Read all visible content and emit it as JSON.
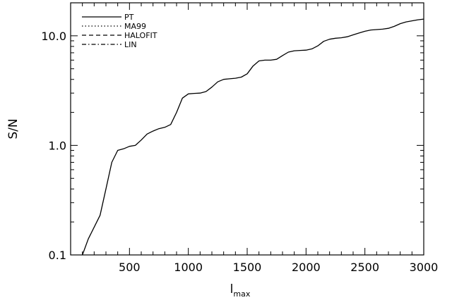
{
  "chart_data": {
    "type": "line",
    "xlabel": "l",
    "xlabel_sub": "max",
    "ylabel": "S/N",
    "xlim": [
      0,
      3000
    ],
    "ylim": [
      0.1,
      20
    ],
    "yscale": "log",
    "grid": false,
    "legend_position": "top-left",
    "x_ticks": [
      500,
      1000,
      1500,
      2000,
      2500,
      3000
    ],
    "x_tick_labels": [
      "500",
      "1000",
      "1500",
      "2000",
      "2500",
      "3000"
    ],
    "y_ticks": [
      0.1,
      1.0,
      10.0
    ],
    "y_tick_labels": [
      "0.1",
      "1.0",
      "10.0"
    ],
    "series": [
      {
        "name": "PT",
        "style": "solid",
        "x": [
          100,
          150,
          250,
          300,
          350,
          400,
          450,
          500,
          550,
          600,
          650,
          700,
          750,
          800,
          850,
          900,
          950,
          1000,
          1050,
          1100,
          1150,
          1200,
          1250,
          1300,
          1350,
          1400,
          1450,
          1500,
          1550,
          1600,
          1650,
          1700,
          1750,
          1800,
          1850,
          1900,
          1950,
          2000,
          2050,
          2100,
          2150,
          2200,
          2250,
          2300,
          2350,
          2400,
          2450,
          2500,
          2550,
          2600,
          2650,
          2700,
          2750,
          2800,
          2850,
          2900,
          2950,
          3000
        ],
        "y": [
          0.1,
          0.14,
          0.23,
          0.4,
          0.7,
          0.9,
          0.93,
          0.98,
          1.0,
          1.12,
          1.27,
          1.35,
          1.42,
          1.46,
          1.55,
          2.0,
          2.7,
          2.95,
          2.98,
          3.0,
          3.1,
          3.4,
          3.8,
          4.0,
          4.05,
          4.1,
          4.2,
          4.5,
          5.3,
          5.9,
          6.0,
          6.0,
          6.1,
          6.6,
          7.1,
          7.3,
          7.35,
          7.4,
          7.6,
          8.1,
          8.9,
          9.3,
          9.5,
          9.6,
          9.8,
          10.2,
          10.6,
          11.0,
          11.3,
          11.4,
          11.5,
          11.7,
          12.2,
          12.9,
          13.4,
          13.7,
          14.0,
          14.2
        ]
      },
      {
        "name": "MA99",
        "style": "dotted",
        "x": [],
        "y": []
      },
      {
        "name": "HALOFIT",
        "style": "dashed",
        "x": [],
        "y": []
      },
      {
        "name": "LIN",
        "style": "dashdot",
        "x": [],
        "y": []
      }
    ]
  }
}
